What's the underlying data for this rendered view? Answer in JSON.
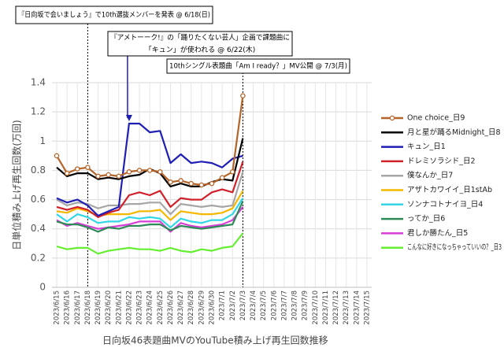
{
  "chart_data": {
    "type": "line",
    "ylabel": "日単位積み上げ再生回数(万回)",
    "xlabel": "日向坂46表題曲MVのYouTube積み上げ再生回数推移",
    "annotations": [
      [
        "『日向坂で会いましょう』で10th選抜メンバーを発表 @ 6/18(日)"
      ],
      [
        "『アメトーーク!』の「踊りたくない芸人」企画で課題曲に",
        "「キュン」が使われる @ 6/22(木)"
      ],
      [
        "10thシングル表題曲「Am I ready？」MV公開 @ 7/3(月)"
      ]
    ],
    "categories": [
      "2023/6/15",
      "2023/6/16",
      "2023/6/17",
      "2023/6/18",
      "2023/6/19",
      "2023/6/20",
      "2023/6/21",
      "2023/6/22",
      "2023/6/23",
      "2023/6/24",
      "2023/6/25",
      "2023/6/26",
      "2023/6/27",
      "2023/6/28",
      "2023/6/29",
      "2023/6/30",
      "2023/7/1",
      "2023/7/2",
      "2023/7/3",
      "2023/7/4",
      "2023/7/5",
      "2023/7/6",
      "2023/7/7",
      "2023/7/8",
      "2023/7/9",
      "2023/7/10",
      "2023/7/11",
      "2023/7/12",
      "2023/7/13",
      "2023/7/14",
      "2023/7/15"
    ],
    "ylim": [
      0,
      1.4
    ],
    "yticks": [
      0,
      0.2,
      0.4,
      0.6,
      0.8,
      1,
      1.2,
      1.4
    ],
    "grid": true,
    "legend": "right",
    "series": [
      {
        "name": "One choice_日9",
        "color": "#b5652a",
        "marker": "circle",
        "values": [
          0.9,
          0.78,
          0.81,
          0.82,
          0.76,
          0.77,
          0.76,
          0.79,
          0.8,
          0.8,
          0.79,
          0.72,
          0.73,
          0.71,
          0.7,
          0.71,
          0.75,
          0.79,
          1.31,
          null,
          null,
          null,
          null,
          null,
          null,
          null,
          null,
          null,
          null,
          null,
          null
        ]
      },
      {
        "name": "月と星が踊るMidnight_日8",
        "color": "#000000",
        "values": [
          0.82,
          0.76,
          0.78,
          0.78,
          0.74,
          0.75,
          0.74,
          0.76,
          0.77,
          0.81,
          0.78,
          0.69,
          0.71,
          0.69,
          0.69,
          0.72,
          0.74,
          0.73,
          1.02,
          null,
          null,
          null,
          null,
          null,
          null,
          null,
          null,
          null,
          null,
          null,
          null
        ]
      },
      {
        "name": "キュン_日1",
        "color": "#1f1fb4",
        "values": [
          0.61,
          0.58,
          0.6,
          0.56,
          0.49,
          0.52,
          0.55,
          1.12,
          1.12,
          1.06,
          1.07,
          0.85,
          0.91,
          0.85,
          0.86,
          0.85,
          0.82,
          0.88,
          0.9,
          null,
          null,
          null,
          null,
          null,
          null,
          null,
          null,
          null,
          null,
          null,
          null
        ]
      },
      {
        "name": "ドレミソラシド_日2",
        "color": "#d0202a",
        "values": [
          0.55,
          0.53,
          0.55,
          0.53,
          0.48,
          0.51,
          0.53,
          0.63,
          0.65,
          0.63,
          0.66,
          0.55,
          0.61,
          0.6,
          0.6,
          0.65,
          0.67,
          0.65,
          0.86,
          null,
          null,
          null,
          null,
          null,
          null,
          null,
          null,
          null,
          null,
          null,
          null
        ]
      },
      {
        "name": "僕なんか_日7",
        "color": "#a6a6a6",
        "values": [
          0.6,
          0.56,
          0.58,
          0.57,
          0.54,
          0.56,
          0.56,
          0.57,
          0.57,
          0.58,
          0.58,
          0.5,
          0.57,
          0.56,
          0.55,
          0.56,
          0.55,
          0.56,
          0.79,
          null,
          null,
          null,
          null,
          null,
          null,
          null,
          null,
          null,
          null,
          null,
          null
        ]
      },
      {
        "name": "アザトカワイイ_日1stAb",
        "color": "#f5b800",
        "values": [
          0.52,
          0.51,
          0.54,
          0.52,
          0.49,
          0.5,
          0.5,
          0.5,
          0.52,
          0.52,
          0.53,
          0.46,
          0.52,
          0.51,
          0.5,
          0.5,
          0.51,
          0.54,
          0.66,
          null,
          null,
          null,
          null,
          null,
          null,
          null,
          null,
          null,
          null,
          null,
          null
        ]
      },
      {
        "name": "ソンナコトナイヨ_日4",
        "color": "#33d6e6",
        "values": [
          0.5,
          0.45,
          0.5,
          0.48,
          0.44,
          0.45,
          0.45,
          0.48,
          0.47,
          0.48,
          0.47,
          0.41,
          0.47,
          0.45,
          0.44,
          0.46,
          0.46,
          0.5,
          0.61,
          null,
          null,
          null,
          null,
          null,
          null,
          null,
          null,
          null,
          null,
          null,
          null
        ]
      },
      {
        "name": "ってか_日6",
        "color": "#2e8b57",
        "values": [
          0.45,
          0.43,
          0.43,
          0.41,
          0.38,
          0.41,
          0.4,
          0.42,
          0.42,
          0.43,
          0.43,
          0.39,
          0.42,
          0.41,
          0.4,
          0.41,
          0.42,
          0.43,
          0.59,
          null,
          null,
          null,
          null,
          null,
          null,
          null,
          null,
          null,
          null,
          null,
          null
        ]
      },
      {
        "name": "君しか勝たん_日5",
        "color": "#d63fd6",
        "values": [
          0.46,
          0.42,
          0.44,
          0.42,
          0.4,
          0.41,
          0.42,
          0.43,
          0.45,
          0.45,
          0.45,
          0.38,
          0.44,
          0.42,
          0.41,
          0.42,
          0.43,
          0.46,
          0.55,
          null,
          null,
          null,
          null,
          null,
          null,
          null,
          null,
          null,
          null,
          null,
          null
        ]
      },
      {
        "name": "こんなに好きになっちゃっていいの？_日3",
        "color": "#66ee33",
        "values": [
          0.28,
          0.26,
          0.27,
          0.27,
          0.23,
          0.25,
          0.26,
          0.27,
          0.26,
          0.26,
          0.25,
          0.27,
          0.25,
          0.24,
          0.26,
          0.25,
          0.27,
          0.28,
          0.37,
          null,
          null,
          null,
          null,
          null,
          null,
          null,
          null,
          null,
          null,
          null,
          null
        ]
      }
    ]
  }
}
